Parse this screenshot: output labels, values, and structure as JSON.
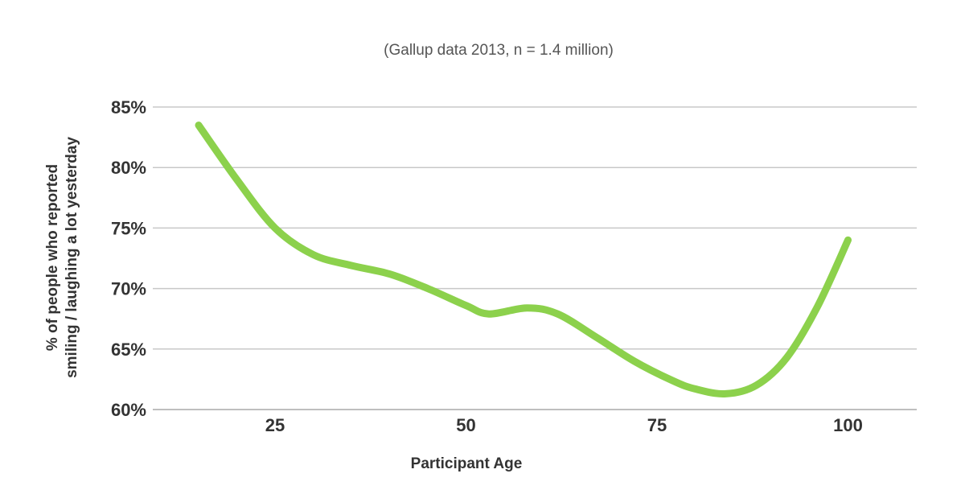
{
  "chart_data": {
    "type": "line",
    "subtitle": "(Gallup data 2013, n = 1.4 million)",
    "xlabel": "Participant Age",
    "ylabel_line1": "% of people who reported",
    "ylabel_line2": "smiling / laughing a lot yesterday",
    "xlim": [
      9,
      109
    ],
    "ylim": [
      60,
      85
    ],
    "x_ticks": [
      25,
      50,
      75,
      100
    ],
    "x_tick_labels": [
      "25",
      "50",
      "75",
      "100"
    ],
    "y_ticks": [
      60,
      65,
      70,
      75,
      80,
      85
    ],
    "y_tick_labels": [
      "60%",
      "65%",
      "70%",
      "75%",
      "80%",
      "85%"
    ],
    "grid": true,
    "series": [
      {
        "color": "#8cd14c",
        "x": [
          15,
          20,
          25,
          30,
          35,
          40,
          45,
          50,
          53,
          58,
          62,
          67,
          72,
          77,
          80,
          84,
          88,
          92,
          96,
          100
        ],
        "y": [
          83.5,
          79.0,
          75.0,
          72.8,
          71.9,
          71.2,
          70.0,
          68.6,
          67.9,
          68.4,
          67.9,
          66.0,
          64.0,
          62.4,
          61.7,
          61.3,
          62.0,
          64.3,
          68.5,
          74.0
        ]
      }
    ]
  }
}
